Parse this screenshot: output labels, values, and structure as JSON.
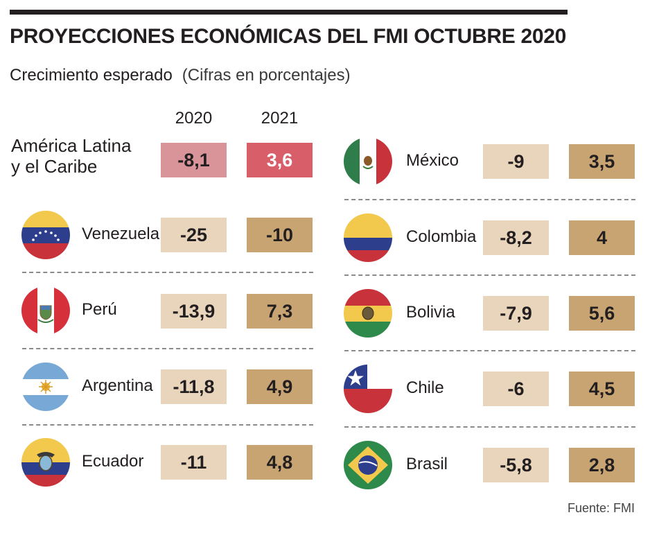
{
  "title": "PROYECCIONES ECONÓMICAS DEL FMI OCTUBRE 2020",
  "subtitle": "Crecimiento esperado",
  "subtitle_note": "(Cifras en porcentajes)",
  "columns": [
    "2020",
    "2021"
  ],
  "region": {
    "line1": "América Latina",
    "line2": "y el Caribe",
    "v2020": "-8,1",
    "v2021": "3,6"
  },
  "left": [
    {
      "name": "Venezuela",
      "v2020": "-25",
      "v2021": "-10",
      "flag": "venezuela-flag-icon"
    },
    {
      "name": "Perú",
      "v2020": "-13,9",
      "v2021": "7,3",
      "flag": "peru-flag-icon"
    },
    {
      "name": "Argentina",
      "v2020": "-11,8",
      "v2021": "4,9",
      "flag": "argentina-flag-icon"
    },
    {
      "name": "Ecuador",
      "v2020": "-11",
      "v2021": "4,8",
      "flag": "ecuador-flag-icon"
    }
  ],
  "right": [
    {
      "name": "México",
      "v2020": "-9",
      "v2021": "3,5",
      "flag": "mexico-flag-icon"
    },
    {
      "name": "Colombia",
      "v2020": "-8,2",
      "v2021": "4",
      "flag": "colombia-flag-icon"
    },
    {
      "name": "Bolivia",
      "v2020": "-7,9",
      "v2021": "5,6",
      "flag": "bolivia-flag-icon"
    },
    {
      "name": "Chile",
      "v2020": "-6",
      "v2021": "4,5",
      "flag": "chile-flag-icon"
    },
    {
      "name": "Brasil",
      "v2020": "-5,8",
      "v2021": "2,8",
      "flag": "brasil-flag-icon"
    }
  ],
  "source": "Fuente: FMI",
  "chart_data": {
    "type": "table",
    "title": "PROYECCIONES ECONÓMICAS DEL FMI OCTUBRE 2020",
    "subtitle": "Crecimiento esperado (Cifras en porcentajes)",
    "columns": [
      "2020",
      "2021"
    ],
    "rows": [
      {
        "name": "América Latina y el Caribe",
        "values": [
          -8.1,
          3.6
        ]
      },
      {
        "name": "Venezuela",
        "values": [
          -25,
          -10
        ]
      },
      {
        "name": "Perú",
        "values": [
          -13.9,
          7.3
        ]
      },
      {
        "name": "Argentina",
        "values": [
          -11.8,
          4.9
        ]
      },
      {
        "name": "Ecuador",
        "values": [
          -11,
          4.8
        ]
      },
      {
        "name": "México",
        "values": [
          -9,
          3.5
        ]
      },
      {
        "name": "Colombia",
        "values": [
          -8.2,
          4
        ]
      },
      {
        "name": "Bolivia",
        "values": [
          -7.9,
          5.6
        ]
      },
      {
        "name": "Chile",
        "values": [
          -6,
          4.5
        ]
      },
      {
        "name": "Brasil",
        "values": [
          -5.8,
          2.8
        ]
      }
    ]
  },
  "colors": {
    "box_2020": "#e8d5bc",
    "box_2021": "#c8a472",
    "region_2020": "#d9949a",
    "region_2021": "#d85e6a"
  }
}
